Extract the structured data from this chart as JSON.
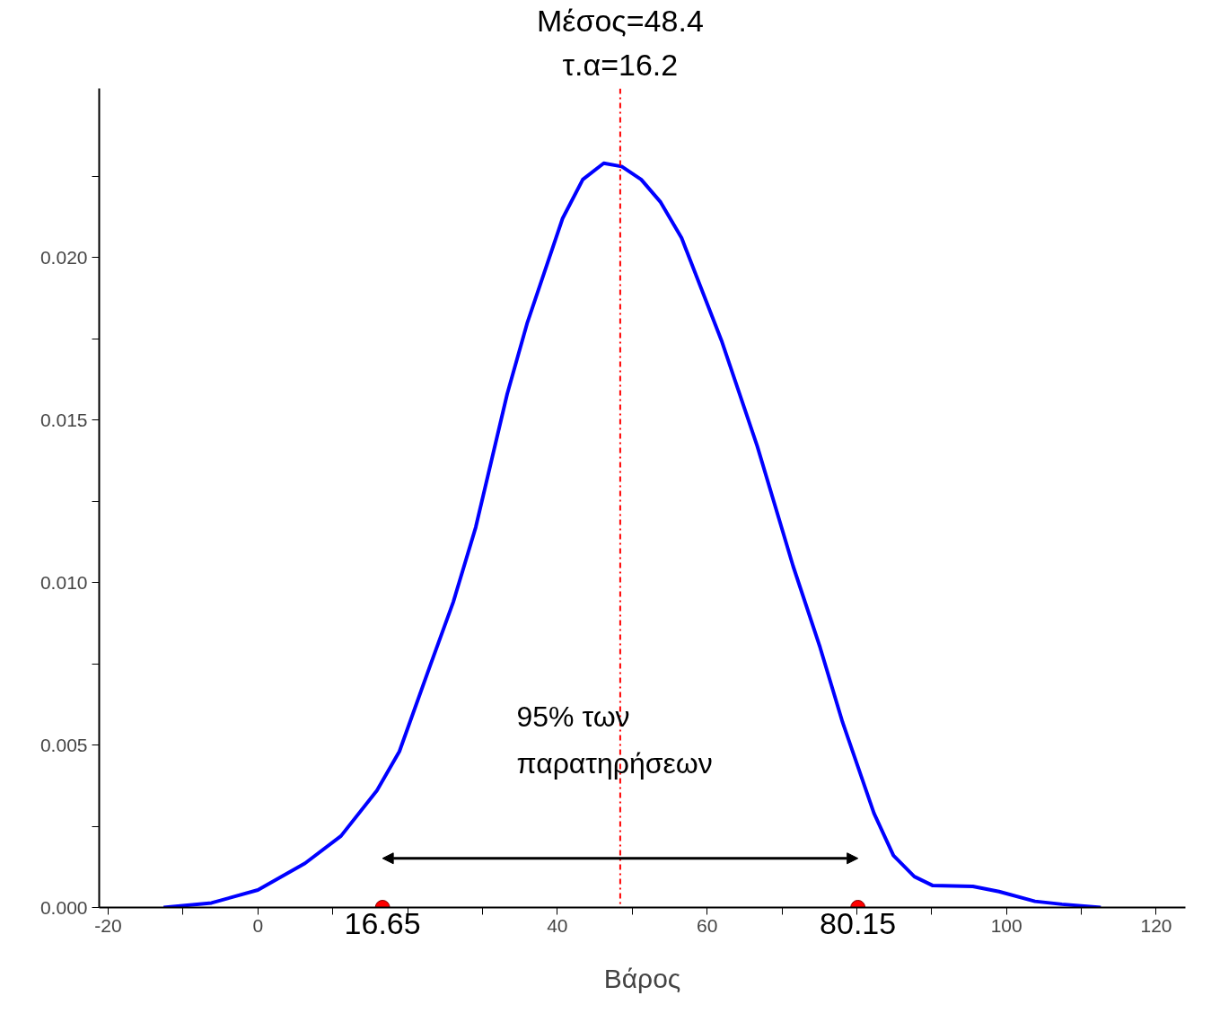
{
  "chart_data": {
    "type": "line",
    "xlabel": "Βάρος",
    "xlim": [
      -21.2,
      123.9
    ],
    "ylim": [
      0,
      0.0252
    ],
    "xticks": [
      -20,
      {
        "value": -10,
        "label": null
      },
      0,
      {
        "value": 10,
        "label": null
      },
      {
        "value": 20,
        "label": null
      },
      {
        "value": 30,
        "label": null
      },
      40,
      {
        "value": 50,
        "label": null
      },
      60,
      {
        "value": 70,
        "label": null
      },
      {
        "value": 80,
        "label": null
      },
      {
        "value": 90,
        "label": null
      },
      100,
      {
        "value": 110,
        "label": null
      },
      120
    ],
    "yticks": [
      {
        "value": 0,
        "label": "0.000"
      },
      {
        "value": 0.0025,
        "label": null
      },
      {
        "value": 0.005,
        "label": "0.005"
      },
      {
        "value": 0.0075,
        "label": null
      },
      {
        "value": 0.01,
        "label": "0.010"
      },
      {
        "value": 0.0125,
        "label": null
      },
      {
        "value": 0.015,
        "label": "0.015"
      },
      {
        "value": 0.0175,
        "label": null
      },
      {
        "value": 0.02,
        "label": "0.020"
      },
      {
        "value": 0.0225,
        "label": null
      }
    ],
    "grid": false,
    "series": [
      {
        "color": "#0000ff",
        "marker": "none",
        "x": [
          -12.6,
          -6.2,
          0,
          6.3,
          11.1,
          15.9,
          18.9,
          23.1,
          26.1,
          29.1,
          33.3,
          36.0,
          40.7,
          43.4,
          46.2,
          48.6,
          51.2,
          53.8,
          56.6,
          62.0,
          66.7,
          71.5,
          75.1,
          78.1,
          82.3,
          84.9,
          87.7,
          90.1,
          95.5,
          99.0,
          103.8,
          107.4,
          112.6
        ],
        "values": [
          0,
          0.00014,
          0.00054,
          0.00136,
          0.0022,
          0.0036,
          0.0048,
          0.0075,
          0.0094,
          0.0117,
          0.0158,
          0.018,
          0.0212,
          0.0224,
          0.0229,
          0.0228,
          0.0224,
          0.0217,
          0.0206,
          0.0174,
          0.0142,
          0.0105,
          0.008,
          0.0057,
          0.0029,
          0.0016,
          0.00095,
          0.00068,
          0.00065,
          0.00049,
          0.00019,
          0.0001,
          0
        ]
      },
      {
        "type": "scatter",
        "color": "#ff0000",
        "marker": "circle",
        "x": [
          16.65,
          80.15
        ],
        "values": [
          0,
          0
        ]
      }
    ],
    "ref_lines": [
      {
        "axis": "x",
        "value": 48.4,
        "label": null,
        "color": "#ff0000",
        "line_style": "dashdot"
      }
    ],
    "annotations": [
      {
        "text": "Μέσος=48.4",
        "x": 48.4,
        "y": 0.0252
      },
      {
        "text": "τ.α=16.2",
        "x": 48.4,
        "y": 0.0239
      },
      "95% των",
      "παρατηρήσεων",
      {
        "text": "16.65",
        "x": 16.65,
        "y": 0
      },
      {
        "text": "80.15",
        "x": 80.15,
        "y": 0
      }
    ]
  }
}
